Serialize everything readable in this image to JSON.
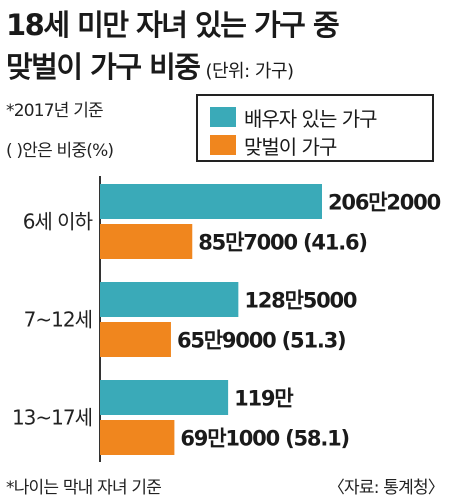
{
  "chart_data": {
    "type": "bar",
    "orientation": "horizontal",
    "title_line1": "18세 미만 자녀 있는 가구 중",
    "title_line2": "맞벌이 가구 비중",
    "unit": "(단위: 가구)",
    "note_year": "*2017년 기준",
    "note_paren": "(   )안은 비중(%)",
    "categories": [
      "6세 이하",
      "7~12세",
      "13~17세"
    ],
    "series": [
      {
        "name": "배우자 있는 가구",
        "color": "#3aaab8",
        "values": [
          2062000,
          1285000,
          1190000
        ],
        "labels": [
          "206만2000",
          "128만5000",
          "119만"
        ]
      },
      {
        "name": "맞벌이 가구",
        "color": "#f0861e",
        "values": [
          857000,
          659000,
          691000
        ],
        "labels": [
          "85만7000 (41.6)",
          "65만9000 (51.3)",
          "69만1000 (58.1)"
        ]
      }
    ],
    "grid": false,
    "legend_position": "top-right",
    "footnote": "*나이는 막내 자녀 기준",
    "source": "〈자료: 통계청〉"
  }
}
